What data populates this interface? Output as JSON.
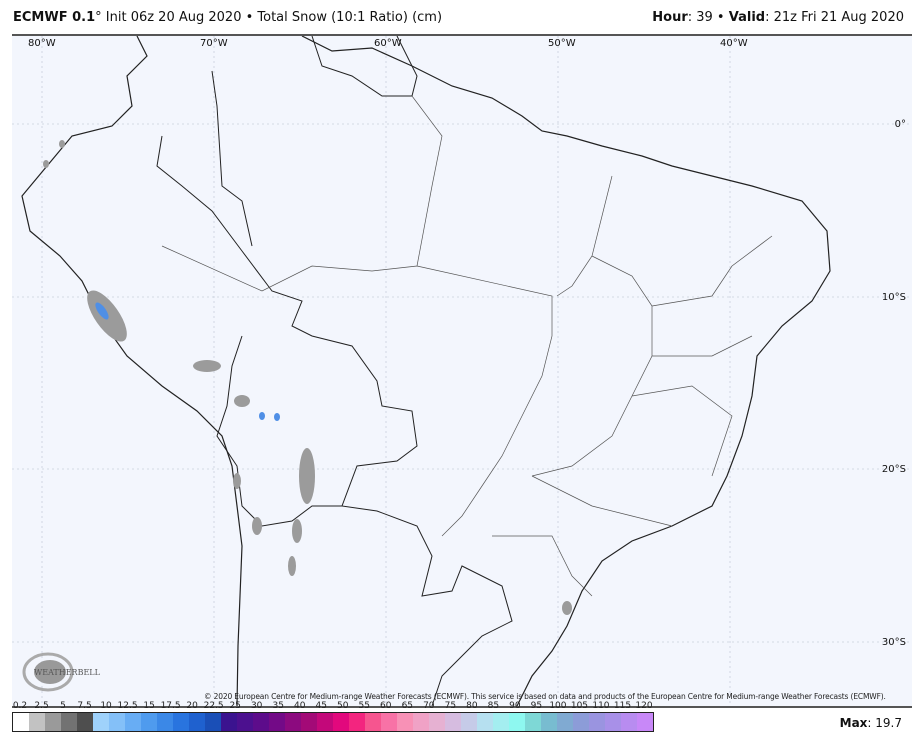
{
  "header": {
    "model": "ECMWF 0.1",
    "degree": "°",
    "init": " Init 06z 20 Aug 2020 • Total Snow (10:1 Ratio) (cm)",
    "hour_label": "Hour",
    "hour": ": 39 • ",
    "valid_label": "Valid",
    "valid": ": 21z Fri 21 Aug 2020"
  },
  "map": {
    "lon_labels": [
      "80°W",
      "70°W",
      "60°W",
      "50°W",
      "40°W"
    ],
    "lat_labels": [
      "0°",
      "10°S",
      "20°S",
      "30°S"
    ],
    "copyright": "© 2020 European Centre for Medium-range Weather Forecasts (ECMWF). This service is based on data and products of the European Centre for Medium-range Weather Forecasts (ECMWF).",
    "logo": "WeatherBELL Analytics LLC"
  },
  "colorbar": {
    "labels": [
      "0.2",
      "2.5",
      "5",
      "7.5",
      "10",
      "12.5",
      "15",
      "17.5",
      "20",
      "22.5",
      "25",
      "30",
      "35",
      "40",
      "45",
      "50",
      "55",
      "60",
      "65",
      "70",
      "75",
      "80",
      "85",
      "90",
      "95",
      "100",
      "105",
      "110",
      "115",
      "120"
    ],
    "colors": [
      "#ffffff",
      "#c2c2c2",
      "#9a9a9a",
      "#727272",
      "#4e4e4e",
      "#9fd2fb",
      "#84c0f8",
      "#68adf4",
      "#4f9bee",
      "#3b88e7",
      "#2974df",
      "#1f61cf",
      "#1a4fb7",
      "#3b138f",
      "#4c108f",
      "#5d0c8b",
      "#730a87",
      "#8c0a7f",
      "#a30a77",
      "#c3087a",
      "#e2087d",
      "#f3257f",
      "#f6558f",
      "#f872a6",
      "#f891b6",
      "#f0a2c6",
      "#e6b1d2",
      "#d6bce0",
      "#c6cbe8",
      "#b6e0f0",
      "#a4eef0",
      "#8ef8f0",
      "#7ed8d6",
      "#78bcd0",
      "#80aad2",
      "#8c9cd8",
      "#9a94e0",
      "#a890e8",
      "#b88cf0",
      "#c888f8"
    ],
    "max_label": "Max",
    "max_value": ": 19.7"
  }
}
